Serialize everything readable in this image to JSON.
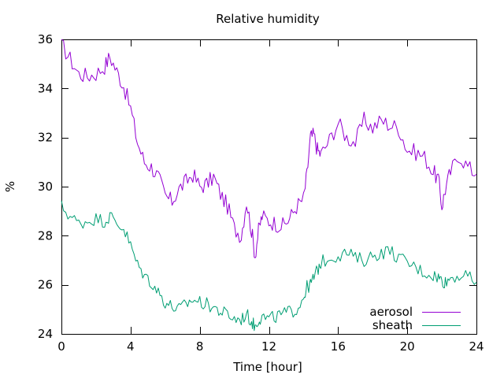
{
  "chart_data": {
    "type": "line",
    "title": "Relative humidity",
    "xlabel": "Time [hour]",
    "ylabel": "%",
    "xlim": [
      0,
      24
    ],
    "ylim": [
      24,
      36
    ],
    "x_ticks": [
      0,
      4,
      8,
      12,
      16,
      20,
      24
    ],
    "y_ticks": [
      24,
      26,
      28,
      30,
      32,
      34,
      36
    ],
    "grid": false,
    "legend_position": "bottom-right",
    "series": [
      {
        "name": "aerosol",
        "color": "#9400d3",
        "x": [
          0,
          0.5,
          1,
          1.5,
          2,
          2.5,
          2.8,
          3.2,
          3.6,
          4,
          4.4,
          4.8,
          5.2,
          5.6,
          6,
          6.4,
          6.8,
          7.2,
          7.6,
          8,
          8.4,
          8.8,
          9.2,
          9.6,
          10,
          10.4,
          10.7,
          11,
          11.2,
          11.4,
          11.6,
          12,
          12.4,
          12.8,
          13.2,
          13.6,
          14,
          14.2,
          14.4,
          14.6,
          14.8,
          15,
          15.5,
          16,
          16.5,
          17,
          17.5,
          18,
          18.5,
          19,
          19.5,
          20,
          20.5,
          21,
          21.5,
          21.8,
          22,
          22.2,
          22.5,
          23,
          23.5,
          24
        ],
        "y": [
          35.8,
          35.2,
          34.6,
          34.5,
          34.6,
          34.9,
          35.3,
          34.7,
          34.1,
          33.2,
          31.8,
          31,
          30.8,
          30.4,
          29.6,
          29.4,
          29.9,
          30.2,
          30.5,
          30,
          30.1,
          30.4,
          29.7,
          29.2,
          28.3,
          28,
          29.4,
          28.2,
          27.2,
          28.2,
          28.8,
          28.6,
          28.5,
          28.4,
          28.7,
          29.2,
          29.5,
          30.5,
          32,
          32.1,
          31.5,
          31.3,
          31.9,
          32.6,
          32,
          31.8,
          32.7,
          32.4,
          32.7,
          32.5,
          32.4,
          31.5,
          31.4,
          31.2,
          30.6,
          30.3,
          29.2,
          29.9,
          30.6,
          31.3,
          30.8,
          30.5
        ]
      },
      {
        "name": "sheath",
        "color": "#009e73",
        "x": [
          0,
          0.5,
          1,
          1.5,
          2,
          2.5,
          2.8,
          3.2,
          3.6,
          4,
          4.4,
          4.8,
          5.2,
          5.6,
          6,
          6.4,
          6.8,
          7.2,
          7.6,
          8,
          8.4,
          8.8,
          9.2,
          9.6,
          10,
          10.4,
          10.7,
          11,
          11.2,
          11.4,
          11.6,
          12,
          12.4,
          12.8,
          13.2,
          13.6,
          14,
          14.2,
          14.4,
          14.6,
          14.8,
          15,
          15.5,
          16,
          16.5,
          17,
          17.5,
          18,
          18.5,
          19,
          19.5,
          20,
          20.5,
          21,
          21.5,
          21.8,
          22,
          22.2,
          22.5,
          23,
          23.5,
          24
        ],
        "y": [
          29.2,
          28.8,
          28.5,
          28.6,
          28.7,
          28.6,
          28.8,
          28.5,
          28.3,
          27.6,
          26.8,
          26.4,
          26.1,
          25.7,
          25.3,
          25.1,
          25,
          25.2,
          25.4,
          25.3,
          25.2,
          25.1,
          24.9,
          24.8,
          24.6,
          24.6,
          24.8,
          24.5,
          24.3,
          24.6,
          24.7,
          24.6,
          24.7,
          24.8,
          24.9,
          25,
          25.5,
          25.9,
          26,
          26.3,
          26.6,
          26.9,
          27.1,
          27.2,
          27.3,
          27.1,
          27,
          27.2,
          27.3,
          27.4,
          27.1,
          26.9,
          26.7,
          26.5,
          26.4,
          26.3,
          26.2,
          26.1,
          26.3,
          26.4,
          26.3,
          26.1
        ]
      }
    ]
  }
}
